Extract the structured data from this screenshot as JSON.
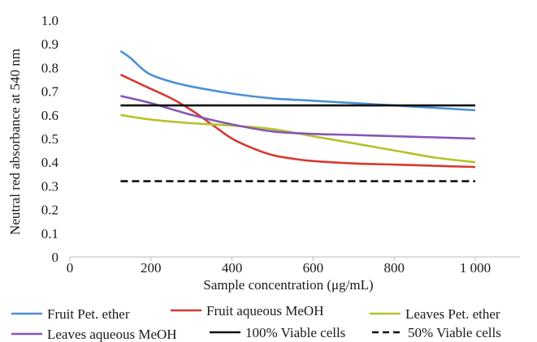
{
  "chart_data": {
    "type": "line",
    "title": "",
    "xlabel": "Sample concentration (μg/mL)",
    "ylabel": "Neutral red absorbance at 540 nm",
    "xlim": [
      0,
      1000
    ],
    "ylim": [
      0,
      1.0
    ],
    "x_ticks": [
      "0",
      "200",
      "400",
      "600",
      "800",
      "1 000"
    ],
    "y_ticks": [
      "0",
      "0.1",
      "0.2",
      "0.3",
      "0.4",
      "0.5",
      "0.6",
      "0.7",
      "0.8",
      "0.9",
      "1.0"
    ],
    "grid": false,
    "legend_position": "bottom",
    "series": [
      {
        "name": "Fruit Pet. ether",
        "color": "#4a8fd4",
        "style": "solid",
        "x": [
          125,
          150,
          175,
          200,
          250,
          300,
          400,
          500,
          600,
          700,
          800,
          900,
          1000
        ],
        "y": [
          0.87,
          0.84,
          0.8,
          0.77,
          0.74,
          0.72,
          0.69,
          0.67,
          0.66,
          0.65,
          0.64,
          0.63,
          0.62
        ]
      },
      {
        "name": "Fruit aqueous MeOH",
        "color": "#d6382f",
        "style": "solid",
        "x": [
          125,
          150,
          200,
          250,
          300,
          350,
          400,
          450,
          500,
          550,
          600,
          700,
          800,
          900,
          1000
        ],
        "y": [
          0.77,
          0.75,
          0.71,
          0.67,
          0.62,
          0.56,
          0.5,
          0.46,
          0.43,
          0.415,
          0.405,
          0.395,
          0.39,
          0.385,
          0.38
        ]
      },
      {
        "name": "Leaves Pet. ether",
        "color": "#b5c22a",
        "style": "solid",
        "x": [
          125,
          200,
          300,
          400,
          500,
          600,
          700,
          800,
          900,
          1000
        ],
        "y": [
          0.6,
          0.58,
          0.565,
          0.555,
          0.54,
          0.51,
          0.48,
          0.45,
          0.42,
          0.4
        ]
      },
      {
        "name": "Leaves aqueous MeOH",
        "color": "#8656b5",
        "style": "solid",
        "x": [
          125,
          200,
          300,
          400,
          500,
          600,
          700,
          800,
          900,
          1000
        ],
        "y": [
          0.68,
          0.65,
          0.6,
          0.56,
          0.53,
          0.52,
          0.515,
          0.51,
          0.505,
          0.5
        ]
      },
      {
        "name": "100% Viable cells",
        "color": "#111111",
        "style": "solid",
        "x": [
          125,
          1000
        ],
        "y": [
          0.64,
          0.64
        ]
      },
      {
        "name": "50% Viable cells",
        "color": "#111111",
        "style": "dashed",
        "x": [
          125,
          1000
        ],
        "y": [
          0.32,
          0.32
        ]
      }
    ]
  }
}
